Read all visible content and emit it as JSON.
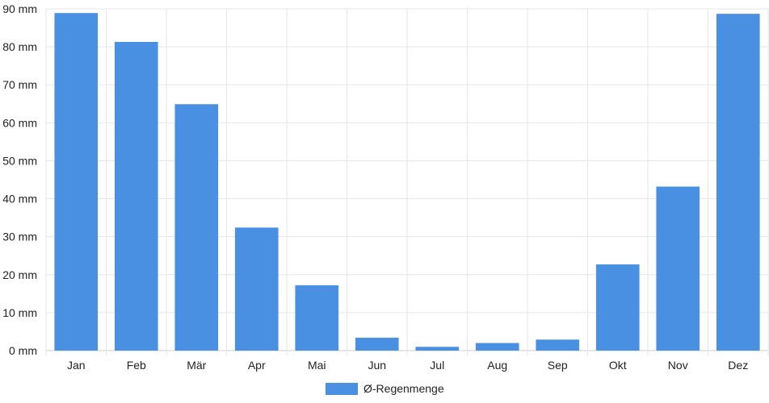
{
  "chart_data": {
    "type": "bar",
    "categories": [
      "Jan",
      "Feb",
      "Mär",
      "Apr",
      "Mai",
      "Jun",
      "Jul",
      "Aug",
      "Sep",
      "Okt",
      "Nov",
      "Dez"
    ],
    "series": [
      {
        "name": "Ø-Regenmenge",
        "values": [
          88.9,
          81.3,
          64.9,
          32.4,
          17.2,
          3.4,
          1.0,
          2.0,
          2.9,
          22.7,
          43.2,
          88.7
        ],
        "color": "#4a90e2"
      }
    ],
    "y_unit": "mm",
    "ylim": [
      0,
      90
    ],
    "y_ticks": [
      0,
      10,
      20,
      30,
      40,
      50,
      60,
      70,
      80,
      90
    ],
    "y_tick_labels": [
      "0 mm",
      "10 mm",
      "20 mm",
      "30 mm",
      "40 mm",
      "50 mm",
      "60 mm",
      "70 mm",
      "80 mm",
      "90 mm"
    ],
    "grid": true,
    "legend_position": "bottom-center",
    "title": "",
    "xlabel": "",
    "ylabel": ""
  }
}
